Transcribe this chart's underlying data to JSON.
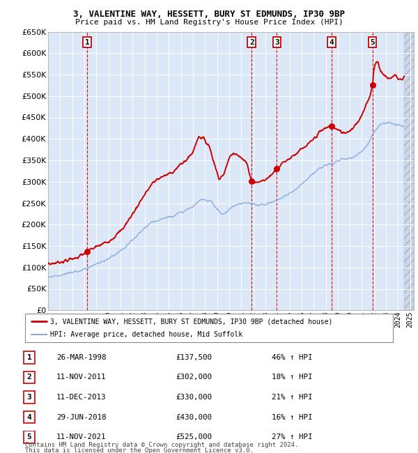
{
  "title1": "3, VALENTINE WAY, HESSETT, BURY ST EDMUNDS, IP30 9BP",
  "title2": "Price paid vs. HM Land Registry's House Price Index (HPI)",
  "bg_color": "#dce8f8",
  "grid_color": "#ffffff",
  "red_line_color": "#cc0000",
  "blue_line_color": "#88aadd",
  "dashed_vline_color": "#cc0000",
  "sale_markers": [
    {
      "num": 1,
      "year": 1998.23,
      "price": 137500
    },
    {
      "num": 2,
      "year": 2011.87,
      "price": 302000
    },
    {
      "num": 3,
      "year": 2013.95,
      "price": 330000
    },
    {
      "num": 4,
      "year": 2018.49,
      "price": 430000
    },
    {
      "num": 5,
      "year": 2021.87,
      "price": 525000
    }
  ],
  "table_rows": [
    {
      "num": 1,
      "date": "26-MAR-1998",
      "price": "£137,500",
      "hpi": "46% ↑ HPI"
    },
    {
      "num": 2,
      "date": "11-NOV-2011",
      "price": "£302,000",
      "hpi": "18% ↑ HPI"
    },
    {
      "num": 3,
      "date": "11-DEC-2013",
      "price": "£330,000",
      "hpi": "21% ↑ HPI"
    },
    {
      "num": 4,
      "date": "29-JUN-2018",
      "price": "£430,000",
      "hpi": "16% ↑ HPI"
    },
    {
      "num": 5,
      "date": "11-NOV-2021",
      "price": "£525,000",
      "hpi": "27% ↑ HPI"
    }
  ],
  "legend_red": "3, VALENTINE WAY, HESSETT, BURY ST EDMUNDS, IP30 9BP (detached house)",
  "legend_blue": "HPI: Average price, detached house, Mid Suffolk",
  "footer1": "Contains HM Land Registry data © Crown copyright and database right 2024.",
  "footer2": "This data is licensed under the Open Government Licence v3.0.",
  "ylim": [
    0,
    650000
  ],
  "xlim_start": 1995.0,
  "xlim_end": 2025.3
}
